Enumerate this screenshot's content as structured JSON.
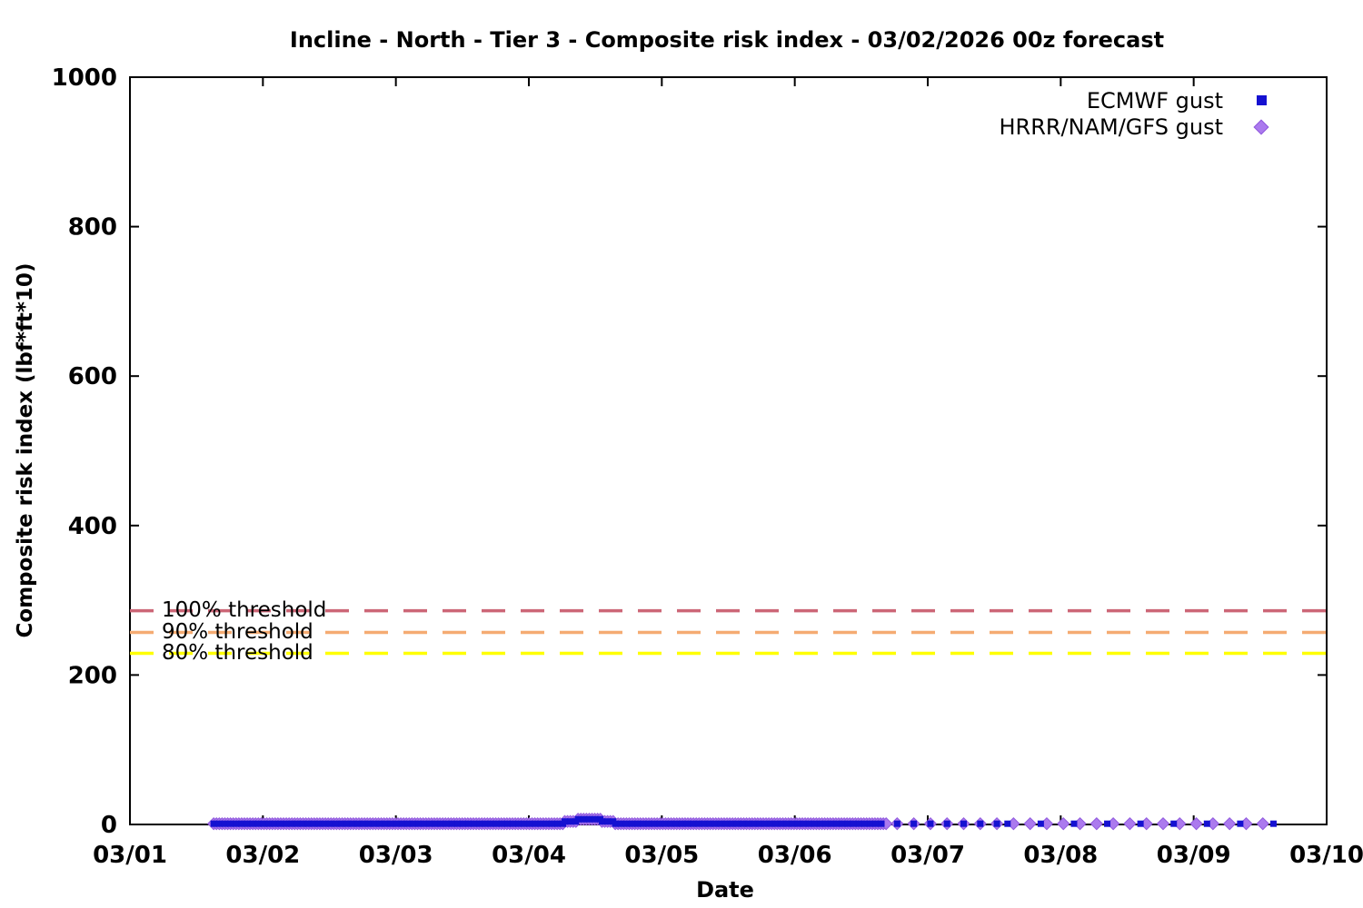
{
  "chart_data": {
    "type": "scatter",
    "title": "Incline - North - Tier 3 - Composite risk index - 03/02/2026 00z forecast",
    "xlabel": "Date",
    "ylabel": "Composite risk index (lbf*ft*10)",
    "ylim": [
      0,
      1000
    ],
    "y_ticks": [
      0,
      200,
      400,
      600,
      800,
      1000
    ],
    "x_ticks": [
      "03/01",
      "03/02",
      "03/03",
      "03/04",
      "03/05",
      "03/06",
      "03/07",
      "03/08",
      "03/09",
      "03/10"
    ],
    "x_range_days": [
      0,
      9
    ],
    "grid": false,
    "legend_position": "top-right-inside",
    "axis_color": "#000000",
    "thresholds": [
      {
        "label": "100% threshold",
        "value": 286,
        "color": "#cc6677"
      },
      {
        "label": "90% threshold",
        "value": 257,
        "color": "#f5ab72"
      },
      {
        "label": "80% threshold",
        "value": 229,
        "color": "#ffff00"
      }
    ],
    "series": [
      {
        "name": "ECMWF gust",
        "marker": "square",
        "color": "#1511d1",
        "edge": "#1511d1",
        "marker_px": 7,
        "segments": [
          {
            "start_day": 0.63,
            "end_day": 3.27,
            "step_day": 0.0417,
            "value": 1
          },
          {
            "start_day": 3.27,
            "end_day": 3.37,
            "step_day": 0.0417,
            "value": 4
          },
          {
            "start_day": 3.37,
            "end_day": 3.55,
            "step_day": 0.0417,
            "value": 7
          },
          {
            "start_day": 3.55,
            "end_day": 3.65,
            "step_day": 0.0417,
            "value": 4
          },
          {
            "start_day": 3.65,
            "end_day": 5.69,
            "step_day": 0.0417,
            "value": 1
          },
          {
            "start_day": 5.77,
            "end_day": 6.52,
            "step_day": 0.125,
            "value": 1
          },
          {
            "start_day": 6.6,
            "end_day": 8.6,
            "step_day": 0.25,
            "value": 1
          }
        ]
      },
      {
        "name": "HRRR/NAM/GFS gust",
        "marker": "diamond",
        "color": "#ab7aee",
        "edge": "#9059dd",
        "marker_px": 13,
        "segments": [
          {
            "start_day": 0.63,
            "end_day": 3.27,
            "step_day": 0.021,
            "value": 1
          },
          {
            "start_day": 3.27,
            "end_day": 3.37,
            "step_day": 0.021,
            "value": 4
          },
          {
            "start_day": 3.37,
            "end_day": 3.55,
            "step_day": 0.021,
            "value": 7
          },
          {
            "start_day": 3.55,
            "end_day": 3.65,
            "step_day": 0.021,
            "value": 4
          },
          {
            "start_day": 3.65,
            "end_day": 5.69,
            "step_day": 0.021,
            "value": 1
          },
          {
            "start_day": 5.77,
            "end_day": 8.58,
            "step_day": 0.125,
            "value": 1
          }
        ]
      }
    ]
  }
}
